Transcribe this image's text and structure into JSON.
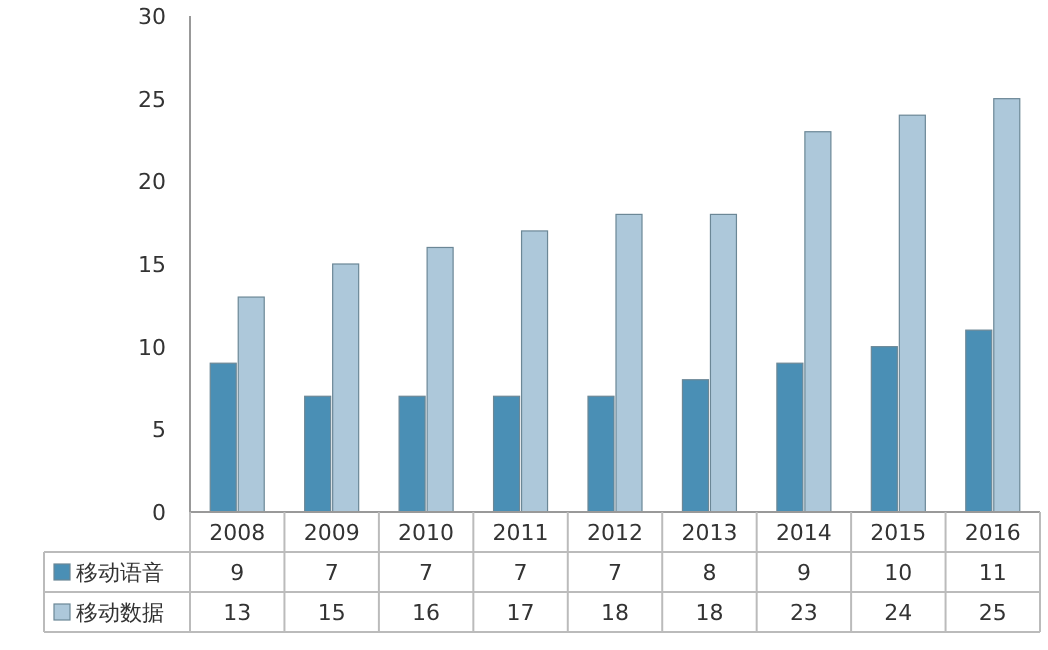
{
  "chart_data": {
    "type": "bar",
    "categories": [
      "2008",
      "2009",
      "2010",
      "2011",
      "2012",
      "2013",
      "2014",
      "2015",
      "2016"
    ],
    "series": [
      {
        "name": "移动语音",
        "color": "#4a8fb5",
        "values": [
          9,
          7,
          7,
          7,
          7,
          8,
          9,
          10,
          11
        ]
      },
      {
        "name": "移动数据",
        "color": "#adc8da",
        "values": [
          13,
          15,
          16,
          17,
          18,
          18,
          23,
          24,
          25
        ]
      }
    ],
    "ylim": [
      0,
      30
    ],
    "yticks": [
      0,
      5,
      10,
      15,
      20,
      25,
      30
    ],
    "data_labels": true,
    "legend": "bottom"
  }
}
